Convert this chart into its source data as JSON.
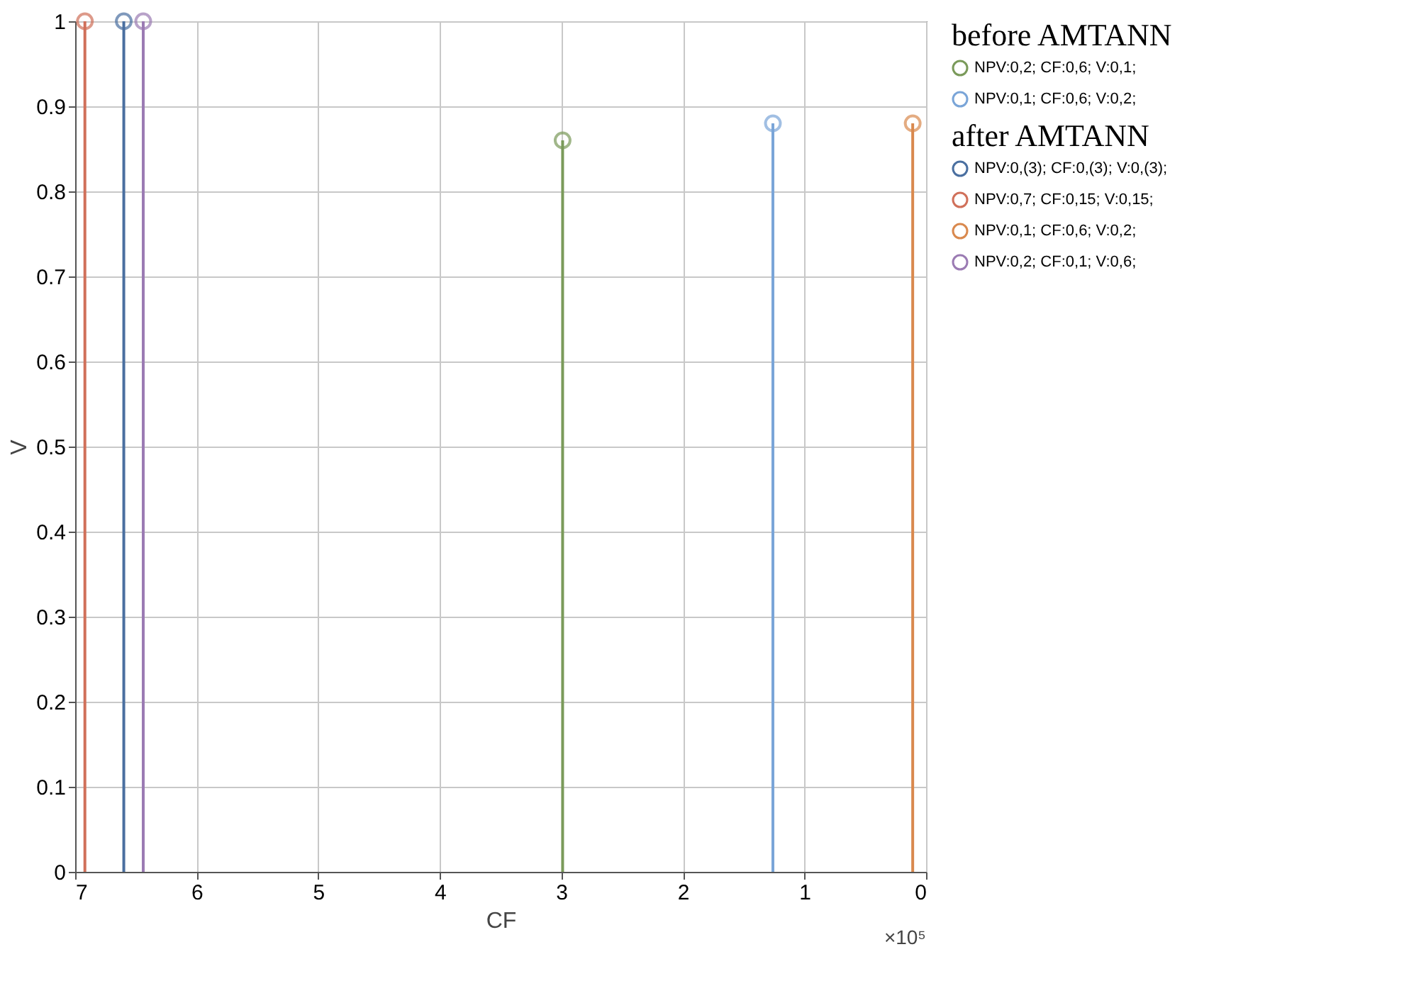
{
  "chart_data": [
    {
      "type": "lollipop",
      "xlabel": "CF",
      "ylabel": "V",
      "legend_title": "before AMTANN",
      "series": [
        {
          "name": "NPV:0,2; CF:0,6; V:0,1;",
          "color": "#7a9a5a",
          "x": [
            2.99
          ],
          "values": [
            0.86
          ]
        },
        {
          "name": "NPV:0,1; CF:0,6; V:0,2;",
          "color": "#7aa5d8",
          "x": [
            1.26
          ],
          "values": [
            0.88
          ]
        }
      ],
      "xlim": [
        7,
        0
      ],
      "xticks": [
        7,
        6,
        5,
        4,
        3,
        2,
        1,
        0
      ],
      "ylim": [
        0,
        1
      ],
      "yticks": [
        0,
        0.1,
        0.2,
        0.3,
        0.4,
        0.5,
        0.6,
        0.7,
        0.8,
        0.9,
        1
      ],
      "annotations": [
        "×10⁵"
      ],
      "grid": true,
      "legend": "top right",
      "marker": "circle"
    },
    {
      "type": "lollipop",
      "legend_title": "after AMTANN",
      "series": [
        {
          "name": "NPV:0,(3); CF:0,(3); V:0,(3);",
          "color": "#4a6fa0",
          "x": [
            6.6
          ],
          "values": [
            1
          ]
        },
        {
          "name": "NPV:0,7; CF:0,15; V:0,15;",
          "color": "#d0705a",
          "x": [
            6.92
          ],
          "values": [
            1
          ]
        },
        {
          "name": "NPV:0,1; CF:0,6; V:0,2;",
          "color": "#d9894e",
          "x": [
            0.11
          ],
          "values": [
            0.88
          ]
        },
        {
          "name": "NPV:0,2; CF:0,1; V:0,6;",
          "color": "#9b7bb3",
          "x": [
            6.44
          ],
          "values": [
            1
          ]
        }
      ],
      "xlim": [
        7,
        0
      ],
      "xticks": [
        7,
        6,
        5,
        4,
        3,
        2,
        1,
        0
      ],
      "ylim": [
        0,
        1
      ],
      "yticks": [
        0,
        0.1,
        0.2,
        0.3,
        0.4,
        0.5,
        0.6,
        0.7,
        0.8,
        0.9,
        1
      ],
      "tick_labels": false,
      "grid": true,
      "legend": "top right",
      "marker": "circle"
    }
  ]
}
